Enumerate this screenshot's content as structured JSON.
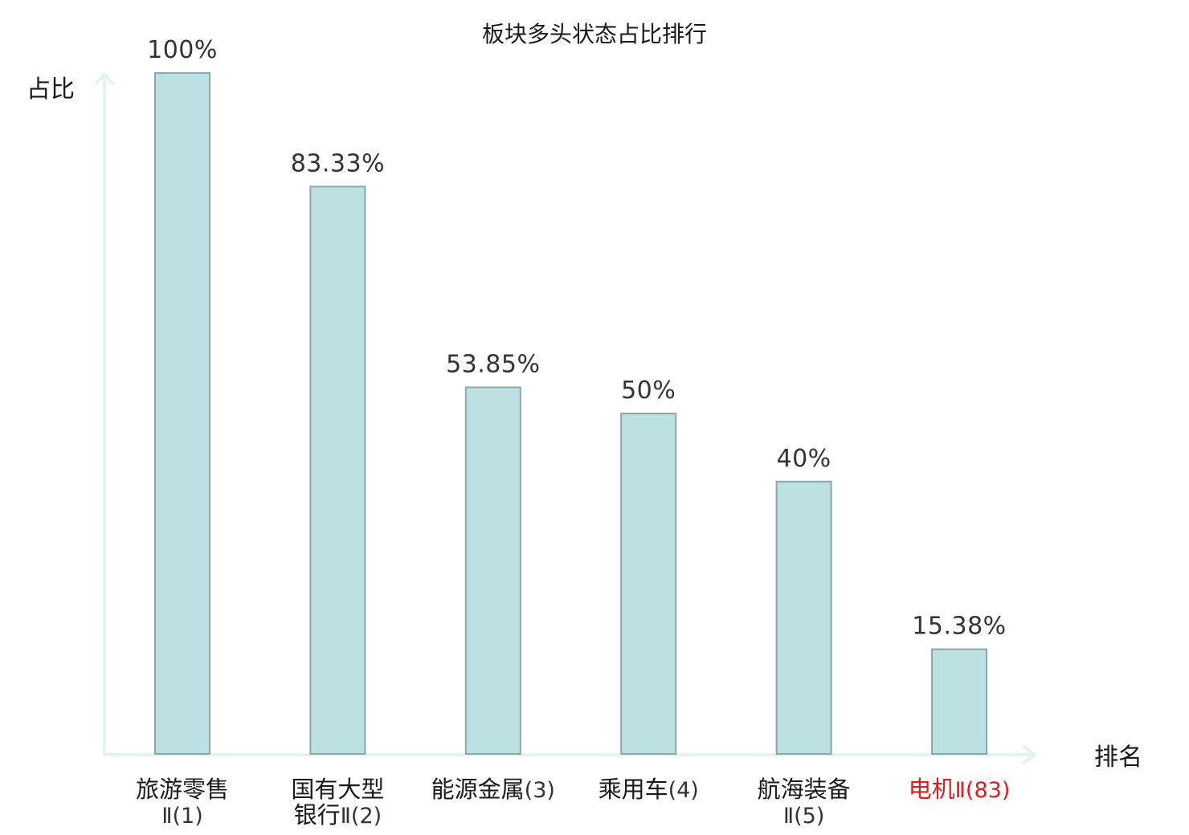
{
  "chart_data": {
    "type": "bar",
    "title": "板块多头状态占比排行",
    "xlabel": "排名",
    "ylabel": "占比",
    "ylim": [
      0,
      100
    ],
    "grid": false,
    "highlight_color": "#e8191c",
    "bar_color": "#bde0e3",
    "categories": [
      {
        "lines": [
          {
            "name": "旅游零售"
          },
          {
            "name": "",
            "rank": "Ⅱ(1)"
          }
        ],
        "highlight": false
      },
      {
        "lines": [
          {
            "name": "国有大型"
          },
          {
            "name": "银行",
            "rank": "Ⅱ(2)"
          }
        ],
        "highlight": false
      },
      {
        "lines": [
          {
            "name": "能源金属",
            "rank": "(3)"
          }
        ],
        "highlight": false
      },
      {
        "lines": [
          {
            "name": "乘用车",
            "rank": "(4)"
          }
        ],
        "highlight": false
      },
      {
        "lines": [
          {
            "name": "航海装备"
          },
          {
            "name": "",
            "rank": "Ⅱ(5)"
          }
        ],
        "highlight": false
      },
      {
        "lines": [
          {
            "name": "电机",
            "rank": "Ⅱ(83)"
          }
        ],
        "highlight": true
      }
    ],
    "values": [
      100,
      83.33,
      53.85,
      50,
      40,
      15.38
    ],
    "value_labels": [
      "100%",
      "83.33%",
      "53.85%",
      "50%",
      "40%",
      "15.38%"
    ]
  }
}
